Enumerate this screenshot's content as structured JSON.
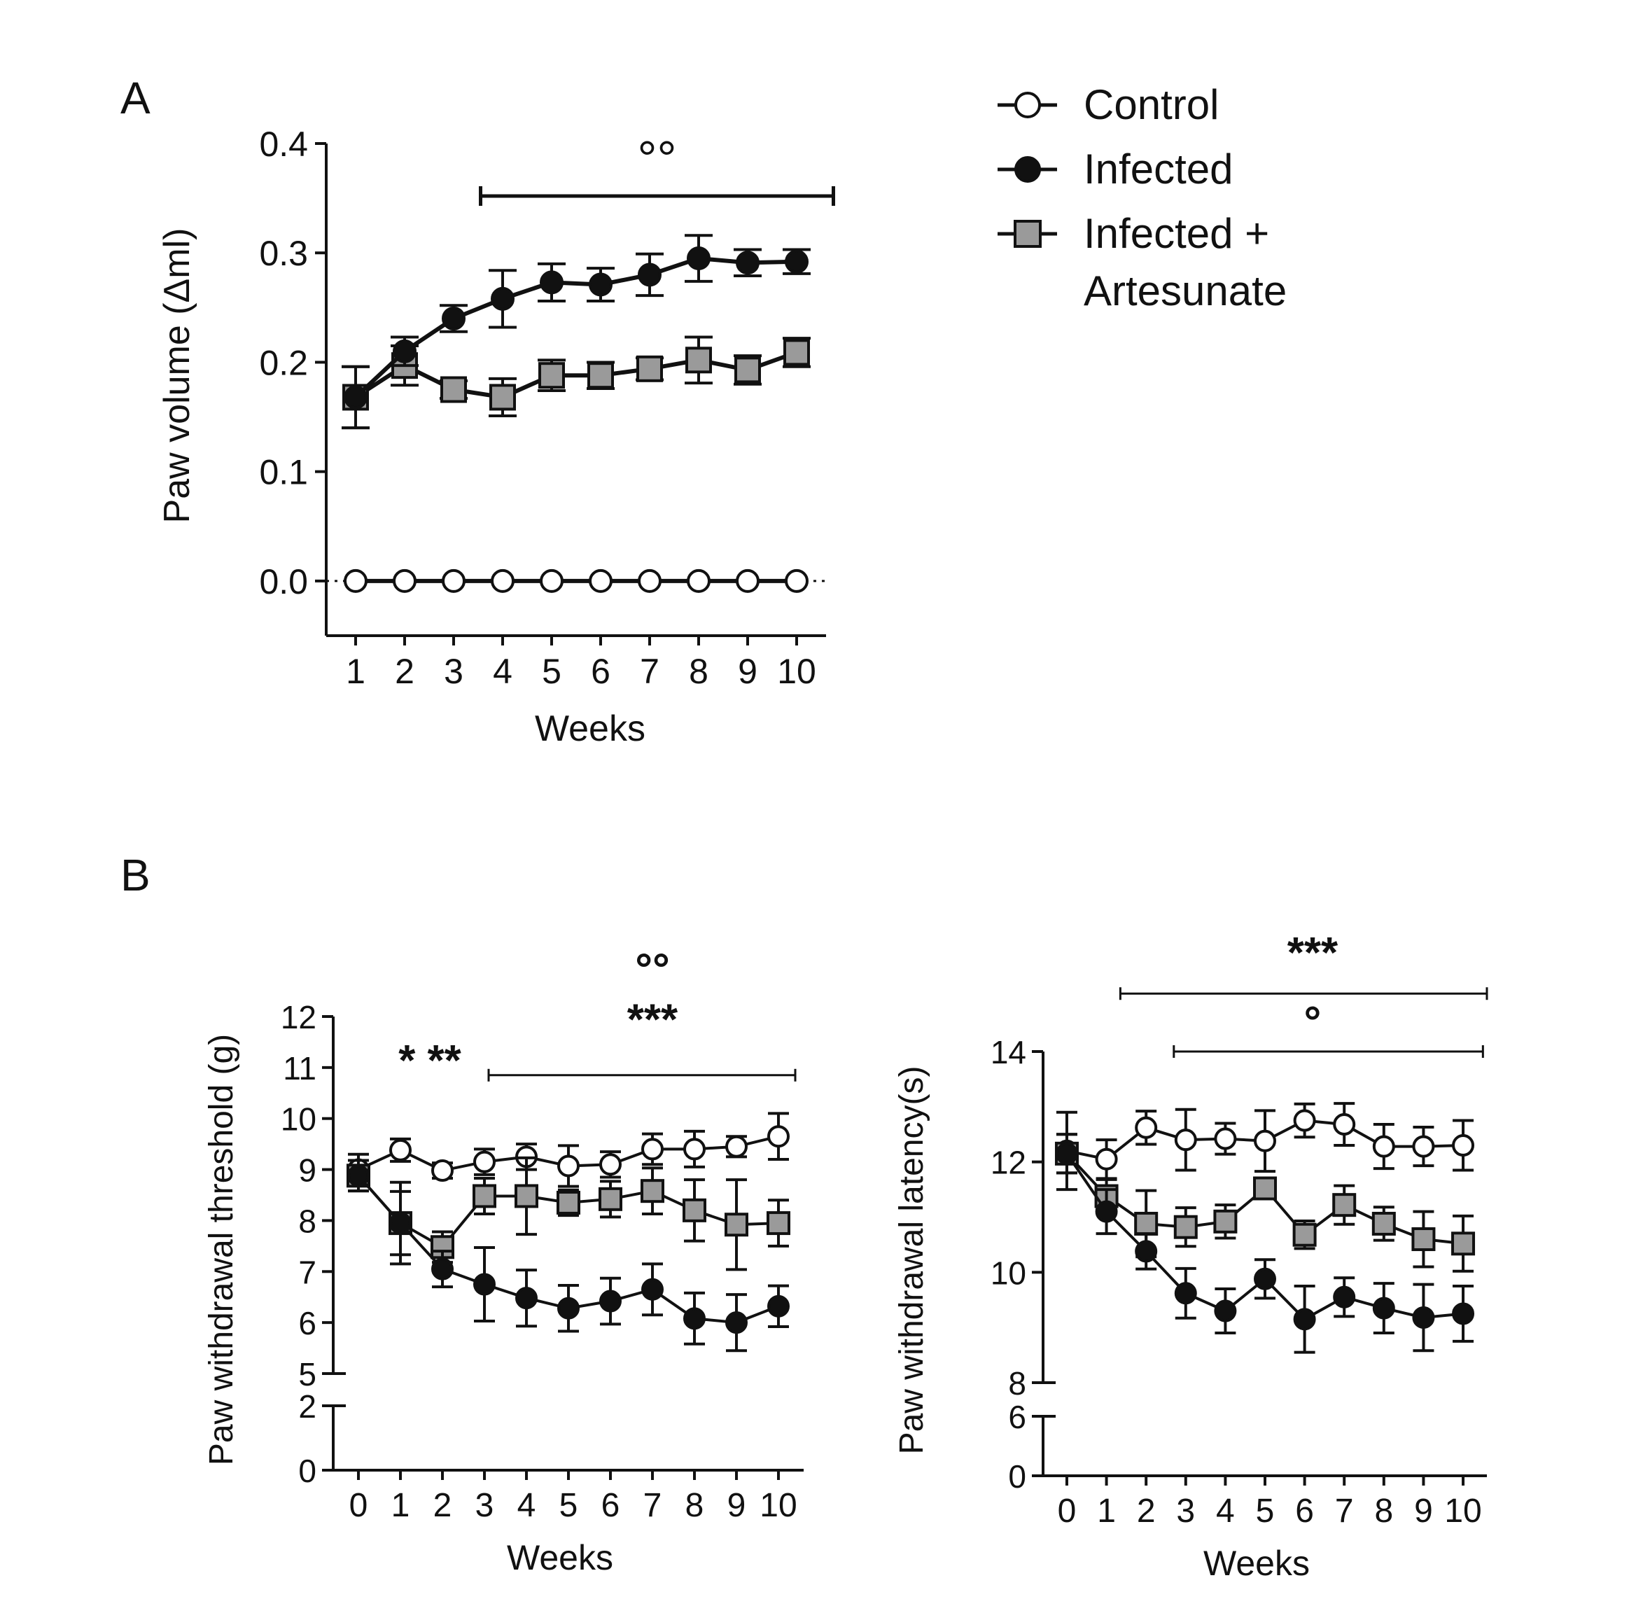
{
  "panels": {
    "a_label": "A",
    "b_label": "B"
  },
  "legend": {
    "items": [
      {
        "lines": [
          "Control"
        ],
        "marker": "open-circle"
      },
      {
        "lines": [
          "Infected"
        ],
        "marker": "filled-circle"
      },
      {
        "lines": [
          "Infected +",
          "Artesunate"
        ],
        "marker": "gray-square"
      }
    ]
  },
  "colors": {
    "control_fill": "#ffffff",
    "infected_fill": "#111111",
    "artesunate_fill": "#9a9a9a",
    "stroke": "#111111"
  },
  "chart_data": [
    {
      "type": "line",
      "panel": "A",
      "title": "",
      "xlabel": "Weeks",
      "ylabel": "Paw volume (Δml)",
      "x": [
        1,
        2,
        3,
        4,
        5,
        6,
        7,
        8,
        9,
        10
      ],
      "xlim": [
        0.4,
        10.6
      ],
      "ylim": [
        -0.05,
        0.4
      ],
      "yticks": [
        0.0,
        0.1,
        0.2,
        0.3,
        0.4
      ],
      "ytick_labels": [
        "0.0",
        "0.1",
        "0.2",
        "0.3",
        "0.4"
      ],
      "xtick_labels": [
        "1",
        "2",
        "3",
        "4",
        "5",
        "6",
        "7",
        "8",
        "9",
        "10"
      ],
      "reference_line_y": 0.0,
      "series": [
        {
          "key": "control",
          "values": [
            0,
            0,
            0,
            0,
            0,
            0,
            0,
            0,
            0,
            0
          ],
          "errors": [
            0,
            0,
            0,
            0,
            0,
            0,
            0,
            0,
            0,
            0
          ]
        },
        {
          "key": "infected",
          "values": [
            0.168,
            0.21,
            0.24,
            0.258,
            0.273,
            0.271,
            0.28,
            0.295,
            0.291,
            0.292
          ],
          "errors": [
            0.028,
            0.013,
            0.012,
            0.026,
            0.017,
            0.015,
            0.019,
            0.021,
            0.012,
            0.011
          ]
        },
        {
          "key": "artesunate",
          "values": [
            0.168,
            0.197,
            0.175,
            0.168,
            0.188,
            0.188,
            0.194,
            0.202,
            0.193,
            0.209
          ],
          "errors": [
            0.028,
            0.018,
            0.008,
            0.017,
            0.014,
            0.012,
            0.01,
            0.021,
            0.013,
            0.013
          ]
        }
      ],
      "annotations": [
        {
          "text": "°°",
          "x_from": 3.55,
          "x_to": 10.75,
          "y": 0.352,
          "text_y": 0.39
        }
      ]
    },
    {
      "type": "line",
      "panel": "B-left",
      "title": "",
      "xlabel": "Weeks",
      "ylabel": "Paw withdrawal threshold (g)",
      "x": [
        0,
        1,
        2,
        3,
        4,
        5,
        6,
        7,
        8,
        9,
        10
      ],
      "xlim": [
        -0.6,
        10.6
      ],
      "ylim_upper": [
        5,
        12
      ],
      "ylim_lower": [
        0,
        2
      ],
      "yticks_upper": [
        5,
        6,
        7,
        8,
        9,
        10,
        11,
        12
      ],
      "ytick_labels_upper": [
        "5",
        "6",
        "7",
        "8",
        "9",
        "10",
        "11",
        "12"
      ],
      "yticks_lower": [
        0,
        2
      ],
      "ytick_labels_lower": [
        "0",
        "2"
      ],
      "xtick_labels": [
        "0",
        "1",
        "2",
        "3",
        "4",
        "5",
        "6",
        "7",
        "8",
        "9",
        "10"
      ],
      "series": [
        {
          "key": "control",
          "values": [
            9.0,
            9.38,
            8.98,
            9.15,
            9.25,
            9.07,
            9.1,
            9.4,
            9.4,
            9.45,
            9.65
          ],
          "errors": [
            0.3,
            0.22,
            0.15,
            0.25,
            0.25,
            0.4,
            0.25,
            0.3,
            0.35,
            0.2,
            0.45
          ]
        },
        {
          "key": "infected",
          "values": [
            8.88,
            7.95,
            7.05,
            6.75,
            6.48,
            6.28,
            6.42,
            6.65,
            6.08,
            6.0,
            6.32
          ],
          "errors": [
            0.3,
            0.8,
            0.35,
            0.72,
            0.55,
            0.45,
            0.45,
            0.5,
            0.5,
            0.55,
            0.4
          ]
        },
        {
          "key": "artesunate",
          "values": [
            8.88,
            7.95,
            7.48,
            8.48,
            8.48,
            8.35,
            8.42,
            8.58,
            8.2,
            7.92,
            7.95
          ],
          "errors": [
            0.3,
            0.62,
            0.3,
            0.35,
            0.75,
            0.25,
            0.35,
            0.45,
            0.6,
            0.88,
            0.45
          ]
        }
      ],
      "annotations": [
        {
          "text": "* **",
          "x": 1.7,
          "y": 11.15
        },
        {
          "text": "***",
          "x": 7.0,
          "y": 11.95
        },
        {
          "text": "°°",
          "x": 7.0,
          "y": 12.95
        },
        {
          "text": "",
          "x_from": 3.1,
          "x_to": 10.4,
          "y": 10.85
        }
      ]
    },
    {
      "type": "line",
      "panel": "B-right",
      "title": "",
      "xlabel": "Weeks",
      "ylabel": "Paw withdrawal latency(s)",
      "x": [
        0,
        1,
        2,
        3,
        4,
        5,
        6,
        7,
        8,
        9,
        10
      ],
      "xlim": [
        -0.6,
        10.6
      ],
      "ylim_upper": [
        8,
        14
      ],
      "ylim_lower": [
        0,
        6
      ],
      "yticks_upper": [
        8,
        10,
        12,
        14
      ],
      "ytick_labels_upper": [
        "8",
        "10",
        "12",
        "14"
      ],
      "yticks_lower": [
        0,
        6
      ],
      "ytick_labels_lower": [
        "0",
        "6"
      ],
      "xtick_labels": [
        "0",
        "1",
        "2",
        "3",
        "4",
        "5",
        "6",
        "7",
        "8",
        "9",
        "10"
      ],
      "series": [
        {
          "key": "control",
          "values": [
            12.2,
            12.05,
            12.62,
            12.4,
            12.42,
            12.38,
            12.75,
            12.68,
            12.28,
            12.28,
            12.3
          ],
          "errors": [
            0.7,
            0.35,
            0.3,
            0.55,
            0.28,
            0.55,
            0.3,
            0.38,
            0.4,
            0.35,
            0.45
          ]
        },
        {
          "key": "infected",
          "values": [
            12.15,
            11.1,
            10.38,
            9.62,
            9.3,
            9.88,
            9.15,
            9.55,
            9.35,
            9.18,
            9.25
          ],
          "errors": [
            0.35,
            0.4,
            0.32,
            0.45,
            0.4,
            0.35,
            0.6,
            0.35,
            0.45,
            0.6,
            0.5
          ]
        },
        {
          "key": "artesunate",
          "values": [
            12.15,
            11.38,
            10.88,
            10.82,
            10.92,
            11.52,
            10.68,
            11.22,
            10.88,
            10.6,
            10.52
          ],
          "errors": [
            0.35,
            0.3,
            0.6,
            0.35,
            0.3,
            0.15,
            0.25,
            0.35,
            0.3,
            0.5,
            0.5
          ]
        }
      ],
      "annotations": [
        {
          "text": "***",
          "x": 6.2,
          "y": 15.8
        },
        {
          "text": "",
          "x_from": 1.35,
          "x_to": 10.6,
          "y": 15.05
        },
        {
          "text": "°",
          "x": 6.2,
          "y": 14.55
        },
        {
          "text": "",
          "x_from": 2.7,
          "x_to": 10.5,
          "y": 14.0
        }
      ]
    }
  ]
}
